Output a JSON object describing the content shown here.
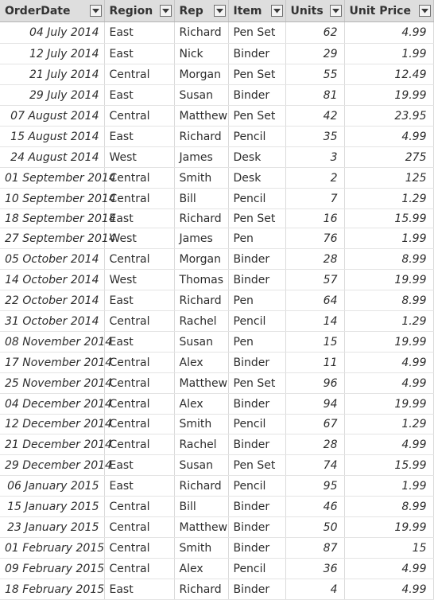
{
  "columns": [
    {
      "key": "orderdate",
      "label": "OrderDate"
    },
    {
      "key": "region",
      "label": "Region"
    },
    {
      "key": "rep",
      "label": "Rep"
    },
    {
      "key": "item",
      "label": "Item"
    },
    {
      "key": "units",
      "label": "Units"
    },
    {
      "key": "unit_price",
      "label": "Unit Price"
    }
  ],
  "icons": {
    "dropdown": "chevron-down-icon"
  },
  "colors": {
    "header_bg": "#dedede",
    "grid_line": "#dadada"
  },
  "rows": [
    {
      "orderdate": "04 July 2014",
      "region": "East",
      "rep": "Richard",
      "item": "Pen Set",
      "units": "62",
      "unit_price": "4.99"
    },
    {
      "orderdate": "12 July 2014",
      "region": "East",
      "rep": "Nick",
      "item": "Binder",
      "units": "29",
      "unit_price": "1.99"
    },
    {
      "orderdate": "21 July 2014",
      "region": "Central",
      "rep": "Morgan",
      "item": "Pen Set",
      "units": "55",
      "unit_price": "12.49"
    },
    {
      "orderdate": "29 July 2014",
      "region": "East",
      "rep": "Susan",
      "item": "Binder",
      "units": "81",
      "unit_price": "19.99"
    },
    {
      "orderdate": "07 August 2014",
      "region": "Central",
      "rep": "Matthew",
      "item": "Pen Set",
      "units": "42",
      "unit_price": "23.95"
    },
    {
      "orderdate": "15 August 2014",
      "region": "East",
      "rep": "Richard",
      "item": "Pencil",
      "units": "35",
      "unit_price": "4.99"
    },
    {
      "orderdate": "24 August 2014",
      "region": "West",
      "rep": "James",
      "item": "Desk",
      "units": "3",
      "unit_price": "275"
    },
    {
      "orderdate": "01 September 2014",
      "region": "Central",
      "rep": "Smith",
      "item": "Desk",
      "units": "2",
      "unit_price": "125"
    },
    {
      "orderdate": "10 September 2014",
      "region": "Central",
      "rep": "Bill",
      "item": "Pencil",
      "units": "7",
      "unit_price": "1.29"
    },
    {
      "orderdate": "18 September 2014",
      "region": "East",
      "rep": "Richard",
      "item": "Pen Set",
      "units": "16",
      "unit_price": "15.99"
    },
    {
      "orderdate": "27 September 2014",
      "region": "West",
      "rep": "James",
      "item": "Pen",
      "units": "76",
      "unit_price": "1.99"
    },
    {
      "orderdate": "05 October 2014",
      "region": "Central",
      "rep": "Morgan",
      "item": "Binder",
      "units": "28",
      "unit_price": "8.99"
    },
    {
      "orderdate": "14 October 2014",
      "region": "West",
      "rep": "Thomas",
      "item": "Binder",
      "units": "57",
      "unit_price": "19.99"
    },
    {
      "orderdate": "22 October 2014",
      "region": "East",
      "rep": "Richard",
      "item": "Pen",
      "units": "64",
      "unit_price": "8.99"
    },
    {
      "orderdate": "31 October 2014",
      "region": "Central",
      "rep": "Rachel",
      "item": "Pencil",
      "units": "14",
      "unit_price": "1.29"
    },
    {
      "orderdate": "08 November 2014",
      "region": "East",
      "rep": "Susan",
      "item": "Pen",
      "units": "15",
      "unit_price": "19.99"
    },
    {
      "orderdate": "17 November 2014",
      "region": "Central",
      "rep": "Alex",
      "item": "Binder",
      "units": "11",
      "unit_price": "4.99"
    },
    {
      "orderdate": "25 November 2014",
      "region": "Central",
      "rep": "Matthew",
      "item": "Pen Set",
      "units": "96",
      "unit_price": "4.99"
    },
    {
      "orderdate": "04 December 2014",
      "region": "Central",
      "rep": "Alex",
      "item": "Binder",
      "units": "94",
      "unit_price": "19.99"
    },
    {
      "orderdate": "12 December 2014",
      "region": "Central",
      "rep": "Smith",
      "item": "Pencil",
      "units": "67",
      "unit_price": "1.29"
    },
    {
      "orderdate": "21 December 2014",
      "region": "Central",
      "rep": "Rachel",
      "item": "Binder",
      "units": "28",
      "unit_price": "4.99"
    },
    {
      "orderdate": "29 December 2014",
      "region": "East",
      "rep": "Susan",
      "item": "Pen Set",
      "units": "74",
      "unit_price": "15.99"
    },
    {
      "orderdate": "06 January 2015",
      "region": "East",
      "rep": "Richard",
      "item": "Pencil",
      "units": "95",
      "unit_price": "1.99"
    },
    {
      "orderdate": "15 January 2015",
      "region": "Central",
      "rep": "Bill",
      "item": "Binder",
      "units": "46",
      "unit_price": "8.99"
    },
    {
      "orderdate": "23 January 2015",
      "region": "Central",
      "rep": "Matthew",
      "item": "Binder",
      "units": "50",
      "unit_price": "19.99"
    },
    {
      "orderdate": "01 February 2015",
      "region": "Central",
      "rep": "Smith",
      "item": "Binder",
      "units": "87",
      "unit_price": "15"
    },
    {
      "orderdate": "09 February 2015",
      "region": "Central",
      "rep": "Alex",
      "item": "Pencil",
      "units": "36",
      "unit_price": "4.99"
    },
    {
      "orderdate": "18 February 2015",
      "region": "East",
      "rep": "Richard",
      "item": "Binder",
      "units": "4",
      "unit_price": "4.99"
    }
  ]
}
